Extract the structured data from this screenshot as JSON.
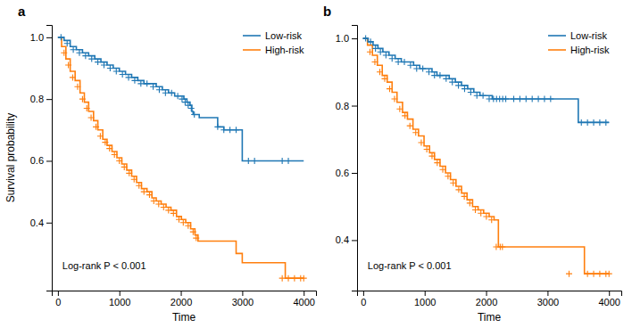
{
  "chart_data": [
    {
      "type": "line",
      "title": "a",
      "xlabel": "Time",
      "ylabel": "Survival probability",
      "annotation": "Log-rank P < 0.001",
      "legend": "upper right",
      "grid": false,
      "xlim": [
        -100,
        4200
      ],
      "ylim": [
        0.18,
        1.04
      ],
      "xticks": [
        0,
        1000,
        2000,
        3000,
        4000
      ],
      "yticks": [
        0.4,
        0.6,
        0.8,
        {
          "value": 1.0,
          "label": "1.0"
        }
      ],
      "series": [
        {
          "name": "Low-risk",
          "type": "step",
          "marker": "plus",
          "x": [
            0,
            100,
            200,
            300,
            400,
            500,
            600,
            700,
            800,
            900,
            1000,
            1100,
            1200,
            1300,
            1400,
            1500,
            1600,
            1700,
            1800,
            1900,
            2000,
            2050,
            2100,
            2150,
            2180,
            2200,
            2250,
            2300,
            2400,
            2500,
            2600,
            2700,
            2800,
            2900,
            3000,
            3100,
            3200,
            3600,
            3700,
            4000
          ],
          "values": [
            1.0,
            0.99,
            0.97,
            0.96,
            0.95,
            0.94,
            0.93,
            0.92,
            0.91,
            0.9,
            0.89,
            0.88,
            0.87,
            0.86,
            0.85,
            0.85,
            0.84,
            0.83,
            0.82,
            0.81,
            0.81,
            0.8,
            0.79,
            0.78,
            0.76,
            0.75,
            0.75,
            0.74,
            0.74,
            0.74,
            0.71,
            0.7,
            0.7,
            0.7,
            0.6,
            0.6,
            0.6,
            0.6,
            0.6,
            0.6
          ],
          "censor_x": [
            50,
            150,
            250,
            350,
            450,
            550,
            650,
            750,
            850,
            950,
            1050,
            1150,
            1250,
            1350,
            1450,
            1550,
            1650,
            1750,
            1850,
            1950,
            2020,
            2070,
            2120,
            2170,
            2220,
            2600,
            2700,
            2800,
            2900,
            3100,
            3200,
            3650,
            3750
          ],
          "censor_values": [
            1.0,
            0.98,
            0.96,
            0.95,
            0.94,
            0.93,
            0.92,
            0.91,
            0.9,
            0.89,
            0.88,
            0.87,
            0.86,
            0.85,
            0.85,
            0.84,
            0.83,
            0.82,
            0.82,
            0.81,
            0.8,
            0.79,
            0.78,
            0.77,
            0.75,
            0.71,
            0.7,
            0.7,
            0.7,
            0.6,
            0.6,
            0.6,
            0.6
          ]
        },
        {
          "name": "High-risk",
          "type": "step",
          "marker": "plus",
          "x": [
            0,
            60,
            130,
            200,
            280,
            360,
            430,
            500,
            580,
            650,
            730,
            800,
            880,
            960,
            1040,
            1120,
            1200,
            1280,
            1360,
            1450,
            1530,
            1600,
            1680,
            1760,
            1840,
            1930,
            2010,
            2080,
            2160,
            2230,
            2280,
            2900,
            3000,
            3600,
            3700,
            3800,
            3900,
            4000
          ],
          "values": [
            1.0,
            0.97,
            0.93,
            0.89,
            0.86,
            0.82,
            0.79,
            0.76,
            0.73,
            0.7,
            0.67,
            0.65,
            0.63,
            0.61,
            0.59,
            0.57,
            0.55,
            0.53,
            0.51,
            0.5,
            0.48,
            0.47,
            0.46,
            0.45,
            0.44,
            0.42,
            0.41,
            0.4,
            0.38,
            0.36,
            0.34,
            0.3,
            0.27,
            0.27,
            0.22,
            0.22,
            0.22,
            0.22
          ],
          "censor_x": [
            100,
            170,
            240,
            320,
            400,
            470,
            540,
            620,
            690,
            770,
            840,
            920,
            1000,
            1080,
            1160,
            1240,
            1320,
            1400,
            1490,
            1560,
            1640,
            1720,
            1800,
            1880,
            1970,
            2040,
            2120,
            2200,
            2250,
            3650,
            3750,
            3850,
            3950,
            4000
          ],
          "censor_values": [
            0.95,
            0.91,
            0.87,
            0.84,
            0.8,
            0.77,
            0.74,
            0.71,
            0.68,
            0.66,
            0.64,
            0.62,
            0.6,
            0.58,
            0.56,
            0.54,
            0.52,
            0.5,
            0.49,
            0.47,
            0.46,
            0.45,
            0.44,
            0.43,
            0.41,
            0.4,
            0.39,
            0.37,
            0.35,
            0.22,
            0.22,
            0.22,
            0.22,
            0.22
          ]
        }
      ]
    },
    {
      "type": "line",
      "title": "b",
      "xlabel": "Time",
      "annotation": "Log-rank P < 0.001",
      "legend": "upper right",
      "grid": false,
      "xlim": [
        -100,
        4200
      ],
      "ylim": [
        0.25,
        1.04
      ],
      "xticks": [
        0,
        1000,
        2000,
        3000,
        4000
      ],
      "yticks": [
        0.4,
        0.6,
        0.8,
        {
          "value": 1.0,
          "label": "1.0"
        }
      ],
      "series": [
        {
          "name": "Low-risk",
          "type": "step",
          "marker": "plus",
          "x": [
            0,
            80,
            160,
            240,
            320,
            420,
            520,
            620,
            720,
            820,
            920,
            1020,
            1120,
            1200,
            1300,
            1400,
            1500,
            1600,
            1700,
            1800,
            1900,
            2000,
            2100,
            2150,
            2200,
            2250,
            2300,
            2400,
            2500,
            2600,
            2700,
            2800,
            2900,
            3000,
            3500,
            3600,
            3700,
            3800,
            3900,
            4000
          ],
          "values": [
            1.0,
            0.99,
            0.98,
            0.97,
            0.96,
            0.95,
            0.94,
            0.93,
            0.93,
            0.92,
            0.91,
            0.91,
            0.9,
            0.89,
            0.89,
            0.88,
            0.87,
            0.86,
            0.85,
            0.84,
            0.83,
            0.83,
            0.82,
            0.82,
            0.82,
            0.82,
            0.82,
            0.82,
            0.82,
            0.82,
            0.82,
            0.82,
            0.82,
            0.82,
            0.75,
            0.75,
            0.75,
            0.75,
            0.75,
            0.75
          ],
          "censor_x": [
            40,
            120,
            200,
            280,
            370,
            470,
            570,
            670,
            770,
            870,
            970,
            1070,
            1160,
            1250,
            1350,
            1450,
            1550,
            1650,
            1750,
            1850,
            1950,
            2050,
            2120,
            2170,
            2220,
            2270,
            2320,
            2450,
            2550,
            2650,
            2750,
            2850,
            2950,
            3050,
            3550,
            3650,
            3750,
            3850,
            3950
          ],
          "censor_values": [
            1.0,
            0.99,
            0.97,
            0.96,
            0.95,
            0.94,
            0.93,
            0.93,
            0.92,
            0.91,
            0.91,
            0.9,
            0.89,
            0.89,
            0.88,
            0.87,
            0.86,
            0.85,
            0.84,
            0.83,
            0.83,
            0.82,
            0.82,
            0.82,
            0.82,
            0.82,
            0.82,
            0.82,
            0.82,
            0.82,
            0.82,
            0.82,
            0.82,
            0.82,
            0.75,
            0.75,
            0.75,
            0.75,
            0.75
          ]
        },
        {
          "name": "High-risk",
          "type": "step",
          "marker": "plus",
          "x": [
            0,
            70,
            150,
            230,
            310,
            390,
            470,
            550,
            640,
            720,
            810,
            900,
            990,
            1080,
            1160,
            1250,
            1340,
            1420,
            1510,
            1600,
            1690,
            1780,
            1870,
            1960,
            2050,
            2130,
            2200,
            2250,
            2280,
            3300,
            3600,
            3700,
            3800,
            3900,
            4000
          ],
          "values": [
            1.0,
            0.98,
            0.95,
            0.92,
            0.89,
            0.87,
            0.84,
            0.81,
            0.78,
            0.76,
            0.73,
            0.71,
            0.68,
            0.66,
            0.64,
            0.62,
            0.6,
            0.58,
            0.56,
            0.54,
            0.52,
            0.5,
            0.49,
            0.48,
            0.47,
            0.46,
            0.38,
            0.38,
            0.38,
            0.38,
            0.3,
            0.3,
            0.3,
            0.3,
            0.3
          ],
          "censor_x": [
            110,
            190,
            270,
            350,
            430,
            510,
            595,
            680,
            760,
            855,
            945,
            1035,
            1120,
            1205,
            1295,
            1380,
            1465,
            1555,
            1645,
            1735,
            1825,
            1915,
            2005,
            2090,
            2165,
            2230,
            2265,
            3350,
            3650,
            3750,
            3850,
            3950,
            4000
          ],
          "censor_values": [
            0.96,
            0.93,
            0.9,
            0.88,
            0.85,
            0.82,
            0.79,
            0.77,
            0.74,
            0.72,
            0.69,
            0.67,
            0.65,
            0.63,
            0.61,
            0.59,
            0.57,
            0.55,
            0.53,
            0.51,
            0.49,
            0.48,
            0.47,
            0.46,
            0.38,
            0.38,
            0.38,
            0.3,
            0.3,
            0.3,
            0.3,
            0.3,
            0.3
          ]
        }
      ]
    }
  ]
}
